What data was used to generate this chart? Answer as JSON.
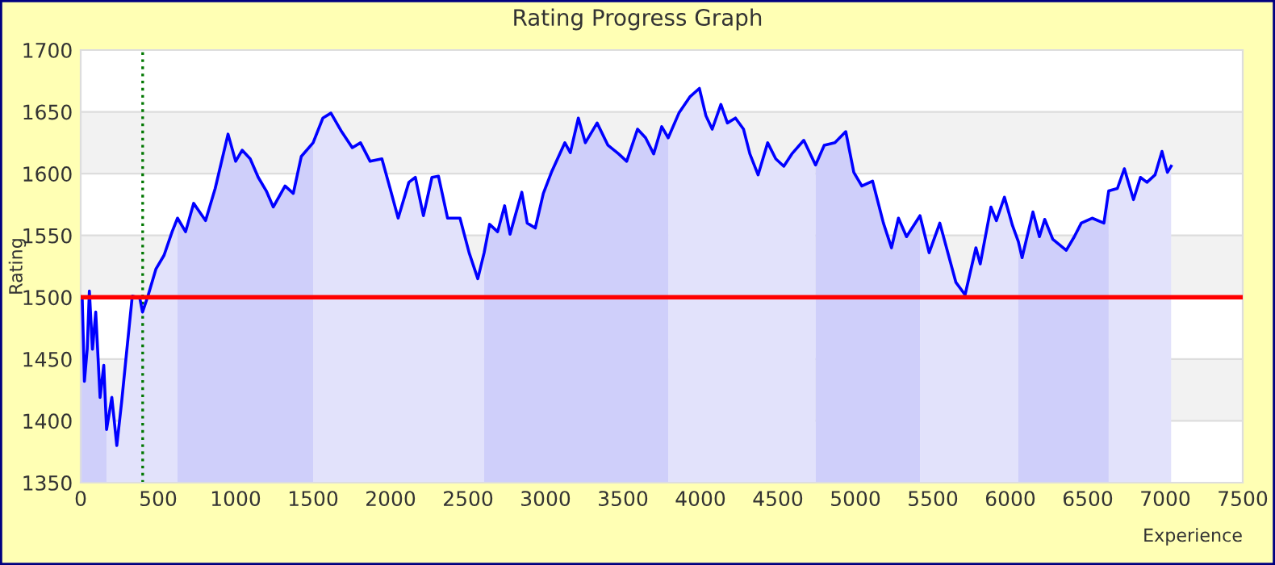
{
  "chart_data": {
    "type": "line",
    "title": "Rating Progress Graph",
    "xlabel": "Experience",
    "ylabel": "Rating",
    "xlim": [
      0,
      7500
    ],
    "xticks": [
      0,
      500,
      1000,
      1500,
      2000,
      2500,
      3000,
      3500,
      4000,
      4500,
      5000,
      5500,
      6000,
      6500,
      7000,
      7500
    ],
    "ylim": [
      1350,
      1700
    ],
    "yticks": [
      1350,
      1400,
      1450,
      1500,
      1550,
      1600,
      1650,
      1700
    ],
    "grid": "y",
    "legend": false,
    "marker": "none",
    "line_style": "solid",
    "ref_lines": [
      {
        "axis": "y",
        "value": 1500,
        "color": "#ff0000",
        "line_style": "solid"
      },
      {
        "axis": "x",
        "value": 400,
        "color": "#007700",
        "line_style": "dotted"
      }
    ],
    "bands": [
      {
        "axis": "y",
        "from": 1400,
        "to": 1450,
        "color": "#f2f2f2"
      },
      {
        "axis": "y",
        "from": 1500,
        "to": 1550,
        "color": "#f2f2f2"
      },
      {
        "axis": "y",
        "from": 1600,
        "to": 1650,
        "color": "#f2f2f2"
      }
    ],
    "series": [
      {
        "type": "area",
        "color": "#cfcffa",
        "x": [
          0,
          10,
          24,
          42,
          56,
          76,
          97,
          125,
          149,
          167
        ],
        "values": [
          1500,
          1499,
          1432,
          1458,
          1505,
          1458,
          1488,
          1419,
          1445,
          1393
        ]
      },
      {
        "type": "area",
        "color": "#e2e2fb",
        "x": [
          167,
          201,
          233,
          264,
          295,
          333,
          382,
          399,
          434,
          486,
          538,
          590,
          625
        ],
        "values": [
          1393,
          1419,
          1380,
          1415,
          1454,
          1501,
          1499,
          1488,
          1501,
          1523,
          1534,
          1553,
          1564
        ]
      },
      {
        "type": "area",
        "color": "#cfcffa",
        "x": [
          625,
          677,
          729,
          806,
          868,
          951,
          1000,
          1042,
          1094,
          1146,
          1198,
          1243,
          1319,
          1372,
          1424,
          1500
        ],
        "values": [
          1564,
          1553,
          1576,
          1562,
          1588,
          1632,
          1610,
          1619,
          1612,
          1597,
          1586,
          1573,
          1590,
          1584,
          1614,
          1625
        ]
      },
      {
        "type": "area",
        "color": "#e2e2fb",
        "x": [
          1500,
          1563,
          1615,
          1684,
          1753,
          1806,
          1868,
          1944,
          1997,
          2049,
          2118,
          2160,
          2212,
          2267,
          2309,
          2368,
          2448,
          2507,
          2563,
          2604
        ],
        "values": [
          1625,
          1645,
          1649,
          1634,
          1621,
          1625,
          1610,
          1612,
          1588,
          1564,
          1593,
          1597,
          1566,
          1597,
          1598,
          1564,
          1564,
          1536,
          1515,
          1536
        ]
      },
      {
        "type": "area",
        "color": "#cfcffa",
        "x": [
          2604,
          2639,
          2691,
          2736,
          2771,
          2847,
          2882,
          2934,
          2986,
          3038,
          3125,
          3160,
          3212,
          3257,
          3333,
          3403,
          3472,
          3524,
          3594,
          3646,
          3698,
          3750,
          3792
        ],
        "values": [
          1536,
          1559,
          1553,
          1574,
          1551,
          1585,
          1560,
          1556,
          1584,
          1601,
          1625,
          1617,
          1645,
          1625,
          1641,
          1623,
          1616,
          1610,
          1636,
          1629,
          1616,
          1638,
          1629
        ]
      },
      {
        "type": "area",
        "color": "#e2e2fb",
        "x": [
          3792,
          3861,
          3931,
          3993,
          4035,
          4076,
          4132,
          4174,
          4226,
          4278,
          4319,
          4372,
          4434,
          4486,
          4538,
          4590,
          4667,
          4743
        ],
        "values": [
          1629,
          1649,
          1662,
          1669,
          1647,
          1636,
          1656,
          1641,
          1645,
          1636,
          1616,
          1599,
          1625,
          1612,
          1606,
          1616,
          1627,
          1607
        ]
      },
      {
        "type": "area",
        "color": "#cfcffa",
        "x": [
          4743,
          4799,
          4868,
          4938,
          4990,
          5042,
          5111,
          5181,
          5233,
          5278,
          5330,
          5417
        ],
        "values": [
          1607,
          1623,
          1625,
          1634,
          1601,
          1590,
          1594,
          1560,
          1540,
          1564,
          1549,
          1566
        ]
      },
      {
        "type": "area",
        "color": "#e2e2fb",
        "x": [
          5417,
          5476,
          5545,
          5597,
          5649,
          5708,
          5778,
          5806,
          5875,
          5910,
          5962,
          6014,
          6052
        ],
        "values": [
          1566,
          1536,
          1560,
          1536,
          1512,
          1502,
          1540,
          1527,
          1573,
          1562,
          1581,
          1558,
          1545
        ]
      },
      {
        "type": "area",
        "color": "#cfcffa",
        "x": [
          6052,
          6076,
          6146,
          6188,
          6222,
          6274,
          6361,
          6413,
          6458,
          6528,
          6604,
          6635
        ],
        "values": [
          1545,
          1532,
          1569,
          1549,
          1563,
          1547,
          1538,
          1549,
          1560,
          1564,
          1560,
          1586
        ]
      },
      {
        "type": "area",
        "color": "#e2e2fb",
        "x": [
          6635,
          6691,
          6736,
          6795,
          6840,
          6882,
          6934,
          6979,
          7014,
          7038
        ],
        "values": [
          1586,
          1588,
          1604,
          1579,
          1597,
          1593,
          1599,
          1618,
          1601,
          1606
        ]
      },
      {
        "color": "#0000ff",
        "x": [
          0,
          10,
          24,
          42,
          56,
          76,
          97,
          125,
          149,
          167,
          201,
          233,
          264,
          295,
          333,
          382,
          399,
          434,
          486,
          538,
          590,
          625,
          677,
          729,
          806,
          868,
          951,
          1000,
          1042,
          1094,
          1146,
          1198,
          1243,
          1319,
          1372,
          1424,
          1500,
          1563,
          1615,
          1684,
          1753,
          1806,
          1868,
          1944,
          1997,
          2049,
          2118,
          2160,
          2212,
          2267,
          2309,
          2368,
          2448,
          2507,
          2563,
          2604,
          2639,
          2691,
          2736,
          2771,
          2847,
          2882,
          2934,
          2986,
          3038,
          3125,
          3160,
          3212,
          3257,
          3333,
          3403,
          3472,
          3524,
          3594,
          3646,
          3698,
          3750,
          3792,
          3861,
          3931,
          3993,
          4035,
          4076,
          4132,
          4174,
          4226,
          4278,
          4319,
          4372,
          4434,
          4486,
          4538,
          4590,
          4667,
          4743,
          4799,
          4868,
          4938,
          4990,
          5042,
          5111,
          5181,
          5233,
          5278,
          5330,
          5417,
          5476,
          5545,
          5597,
          5649,
          5708,
          5778,
          5806,
          5875,
          5910,
          5962,
          6014,
          6052,
          6076,
          6146,
          6188,
          6222,
          6274,
          6361,
          6413,
          6458,
          6528,
          6604,
          6635,
          6691,
          6736,
          6795,
          6840,
          6882,
          6934,
          6979,
          7014,
          7038
        ],
        "values": [
          1500,
          1499,
          1432,
          1458,
          1505,
          1458,
          1488,
          1419,
          1445,
          1393,
          1419,
          1380,
          1415,
          1454,
          1501,
          1499,
          1488,
          1501,
          1523,
          1534,
          1553,
          1564,
          1553,
          1576,
          1562,
          1588,
          1632,
          1610,
          1619,
          1612,
          1597,
          1586,
          1573,
          1590,
          1584,
          1614,
          1625,
          1645,
          1649,
          1634,
          1621,
          1625,
          1610,
          1612,
          1588,
          1564,
          1593,
          1597,
          1566,
          1597,
          1598,
          1564,
          1564,
          1536,
          1515,
          1536,
          1559,
          1553,
          1574,
          1551,
          1585,
          1560,
          1556,
          1584,
          1601,
          1625,
          1617,
          1645,
          1625,
          1641,
          1623,
          1616,
          1610,
          1636,
          1629,
          1616,
          1638,
          1629,
          1649,
          1662,
          1669,
          1647,
          1636,
          1656,
          1641,
          1645,
          1636,
          1616,
          1599,
          1625,
          1612,
          1606,
          1616,
          1627,
          1607,
          1623,
          1625,
          1634,
          1601,
          1590,
          1594,
          1560,
          1540,
          1564,
          1549,
          1566,
          1536,
          1560,
          1536,
          1512,
          1502,
          1540,
          1527,
          1573,
          1562,
          1581,
          1558,
          1545,
          1532,
          1569,
          1549,
          1563,
          1547,
          1538,
          1549,
          1560,
          1564,
          1560,
          1586,
          1588,
          1604,
          1579,
          1597,
          1593,
          1599,
          1618,
          1601,
          1606
        ]
      }
    ]
  }
}
